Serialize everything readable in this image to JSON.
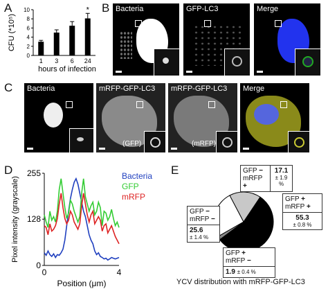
{
  "panels": {
    "A": {
      "label": "A",
      "chart_data": {
        "type": "bar",
        "categories": [
          "1",
          "3",
          "6",
          "24"
        ],
        "values": [
          3.0,
          5.0,
          6.5,
          8.1
        ],
        "errors": [
          0.3,
          0.6,
          0.9,
          1.1
        ],
        "ylabel": "CFU (*10⁵)",
        "xlabel": "hours of infection",
        "ylim": [
          0,
          10
        ],
        "yticks": [
          "0",
          "2",
          "4",
          "6",
          "8",
          "10"
        ],
        "significance": "*",
        "significance_category": "24",
        "bar_color": "#000000"
      }
    },
    "B": {
      "label": "B",
      "titles": [
        "Bacteria",
        "GFP-LC3",
        "Merge"
      ]
    },
    "C": {
      "label": "C",
      "titles": [
        "Bacteria",
        "mRFP-GFP-LC3",
        "mRFP-GFP-LC3",
        "Merge"
      ],
      "channels": [
        "(GFP)",
        "(mRFP)"
      ]
    },
    "D": {
      "label": "D",
      "chart_data": {
        "type": "line",
        "xlabel": "Position (μm)",
        "ylabel": "Pixel intensity (grayscale)",
        "xlim": [
          0,
          4
        ],
        "ylim": [
          0,
          255
        ],
        "xticks": [
          "0",
          "4"
        ],
        "yticks": [
          "0",
          "128",
          "255"
        ],
        "series": [
          {
            "name": "Bacteria",
            "color": "#1f3fbf",
            "x": [
              0,
              0.1,
              0.2,
              0.3,
              0.4,
              0.5,
              0.6,
              0.7,
              0.8,
              0.9,
              1.0,
              1.1,
              1.2,
              1.3,
              1.4,
              1.5,
              1.6,
              1.7,
              1.8,
              1.9,
              2.0,
              2.1,
              2.2,
              2.3,
              2.4,
              2.5,
              2.6,
              2.7,
              2.8,
              2.9,
              3.0,
              3.1,
              3.2,
              3.3,
              3.4,
              3.5,
              3.6,
              3.7,
              3.8,
              3.9,
              4.0
            ],
            "y": [
              35,
              28,
              40,
              30,
              25,
              32,
              22,
              30,
              28,
              35,
              45,
              70,
              110,
              150,
              185,
              210,
              230,
              240,
              225,
              200,
              175,
              150,
              135,
              110,
              85,
              70,
              60,
              40,
              30,
              35,
              25,
              22,
              18,
              20,
              15,
              18,
              22,
              20,
              18,
              20,
              22
            ]
          },
          {
            "name": "GFP",
            "color": "#33cc33",
            "x": [
              0,
              0.1,
              0.2,
              0.3,
              0.4,
              0.5,
              0.6,
              0.7,
              0.8,
              0.9,
              1.0,
              1.1,
              1.2,
              1.3,
              1.4,
              1.5,
              1.6,
              1.7,
              1.8,
              1.9,
              2.0,
              2.1,
              2.2,
              2.3,
              2.4,
              2.5,
              2.6,
              2.7,
              2.8,
              2.9,
              3.0,
              3.1,
              3.2,
              3.3,
              3.4,
              3.5,
              3.6,
              3.7,
              3.8,
              3.9,
              4.0
            ],
            "y": [
              140,
              120,
              105,
              150,
              125,
              135,
              120,
              150,
              210,
              240,
              200,
              160,
              130,
              145,
              180,
              170,
              150,
              135,
              120,
              135,
              200,
              240,
              190,
              170,
              150,
              165,
              175,
              140,
              150,
              175,
              160,
              110,
              150,
              145,
              125,
              135,
              155,
              130,
              110,
              120,
              105
            ]
          },
          {
            "name": "mRFP",
            "color": "#dd2222",
            "x": [
              0,
              0.1,
              0.2,
              0.3,
              0.4,
              0.5,
              0.6,
              0.7,
              0.8,
              0.9,
              1.0,
              1.1,
              1.2,
              1.3,
              1.4,
              1.5,
              1.6,
              1.7,
              1.8,
              1.9,
              2.0,
              2.1,
              2.2,
              2.3,
              2.4,
              2.5,
              2.6,
              2.7,
              2.8,
              2.9,
              3.0,
              3.1,
              3.2,
              3.3,
              3.4,
              3.5,
              3.6,
              3.7,
              3.8,
              3.9,
              4.0
            ],
            "y": [
              110,
              105,
              85,
              115,
              95,
              100,
              110,
              130,
              170,
              200,
              160,
              130,
              115,
              125,
              150,
              140,
              120,
              110,
              100,
              115,
              165,
              200,
              170,
              140,
              120,
              140,
              150,
              115,
              125,
              135,
              125,
              95,
              110,
              115,
              90,
              100,
              110,
              95,
              80,
              70,
              60
            ]
          }
        ]
      }
    },
    "E": {
      "label": "E",
      "caption": "YCV distribution with mRFP-GFP-LC3",
      "chart_data": {
        "type": "pie",
        "title": "YCV distribution with mRFP-GFP-LC3",
        "slices": [
          {
            "gfp": "GFP",
            "gfp_sign": "+",
            "mrfp": "mRFP",
            "mrfp_sign": "+",
            "value": 55.3,
            "value_text": "55.3",
            "error_text": "± 0.8 %",
            "color": "#000000"
          },
          {
            "gfp": "GFP",
            "gfp_sign": "+",
            "mrfp": "mRFP",
            "mrfp_sign": "−",
            "value": 1.9,
            "value_text": "1.9",
            "error_text": "± 0.4 %",
            "color": "#888888"
          },
          {
            "gfp": "GFP",
            "gfp_sign": "−",
            "mrfp": "mRFP",
            "mrfp_sign": "−",
            "value": 25.6,
            "value_text": "25.6",
            "error_text": "± 1.4 %",
            "color": "#ffffff"
          },
          {
            "gfp": "GFP",
            "gfp_sign": "−",
            "mrfp": "mRFP",
            "mrfp_sign": "+",
            "value": 17.1,
            "value_text": "17.1",
            "error_text": "± 1.9 %",
            "color": "#c8c8c8"
          }
        ]
      }
    }
  }
}
